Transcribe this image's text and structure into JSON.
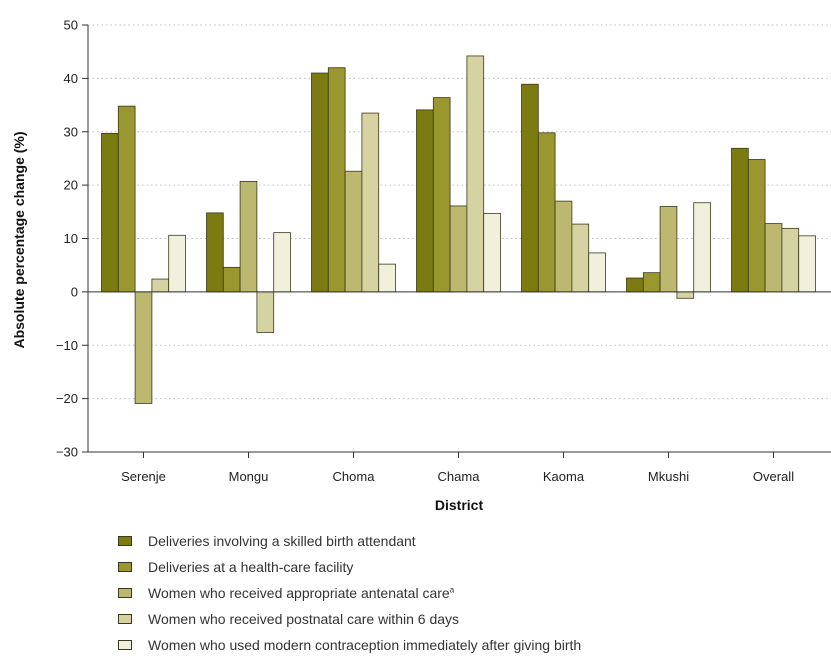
{
  "chart_data": {
    "type": "bar",
    "xlabel": "District",
    "ylabel": "Absolute percentage change (%)",
    "ylim": [
      -30,
      50
    ],
    "yticks": [
      "50",
      "40",
      "30",
      "20",
      "10",
      "0",
      "−10",
      "−20",
      "−30"
    ],
    "ytick_values": [
      50,
      40,
      30,
      20,
      10,
      0,
      -10,
      -20,
      -30
    ],
    "grid": "horizontal dotted",
    "legend_position": "bottom",
    "categories": [
      "Serenje",
      "Mongu",
      "Choma",
      "Chama",
      "Kaoma",
      "Mkushi",
      "Overall"
    ],
    "series": [
      {
        "name": "Deliveries involving a skilled birth attendant",
        "color": "#7b7b12",
        "values": [
          29.7,
          14.8,
          41.0,
          34.1,
          38.9,
          2.6,
          26.9
        ]
      },
      {
        "name": "Deliveries at a health-care facility",
        "color": "#9a9630",
        "values": [
          34.8,
          4.6,
          42.0,
          36.4,
          29.8,
          3.6,
          24.8
        ]
      },
      {
        "name": "Women who received appropriate antenatal care",
        "superscript": "a",
        "color": "#bcb870",
        "values": [
          -20.9,
          20.7,
          22.6,
          16.1,
          17.0,
          16.0,
          12.8
        ]
      },
      {
        "name": "Women who received postnatal care within 6 days",
        "color": "#d6d3a2",
        "values": [
          2.4,
          -7.6,
          33.5,
          44.2,
          12.7,
          -1.2,
          11.9
        ]
      },
      {
        "name": "Women who used modern contraception immediately after giving birth",
        "color": "#f1f0dc",
        "values": [
          10.6,
          11.1,
          5.2,
          14.7,
          7.3,
          16.7,
          10.5
        ]
      }
    ]
  }
}
